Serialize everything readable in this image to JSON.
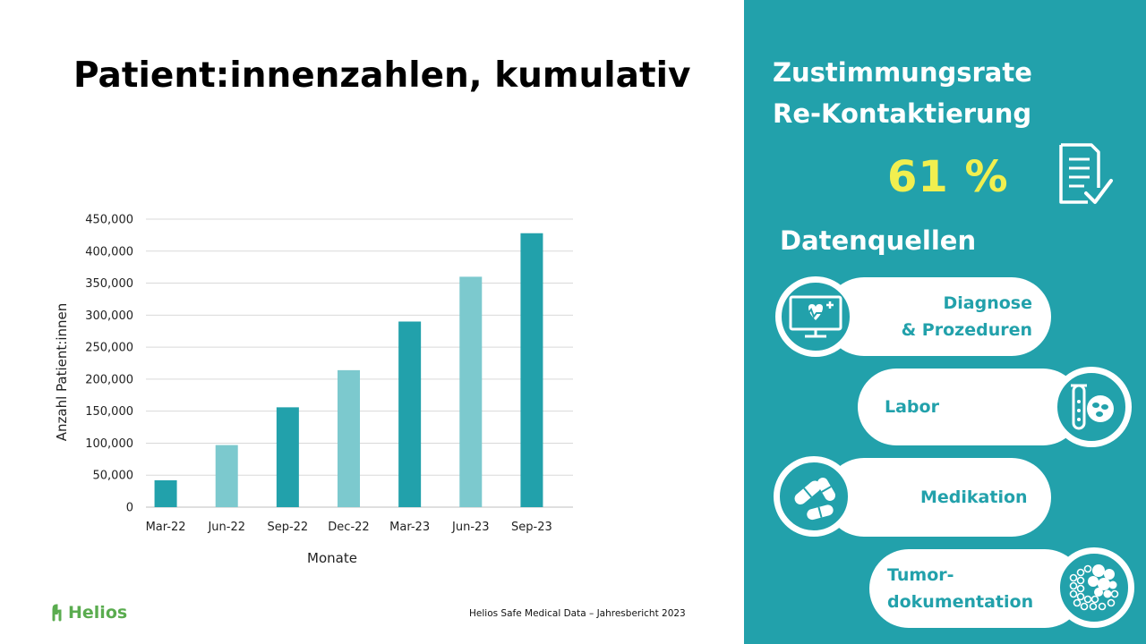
{
  "slide": {
    "title": "Patient:innenzahlen, kumulativ",
    "footer": "Helios Safe Medical Data – Jahresbericht 2023",
    "logo_text": "Helios"
  },
  "panel": {
    "title_line1": "Zustimmungsrate",
    "title_line2": "Re-Kontaktierung",
    "rate": "61 %",
    "sources_title": "Datenquellen",
    "sources": [
      {
        "label": "Diagnose\n& Prozeduren",
        "icon": "monitor-heart-icon"
      },
      {
        "label": "Labor",
        "icon": "test-tube-cells-icon"
      },
      {
        "label": "Medikation",
        "icon": "pills-icon"
      },
      {
        "label": "Tumor-\ndokumentation",
        "icon": "tumor-cells-icon"
      }
    ]
  },
  "colors": {
    "panel": "#22a1ab",
    "bar_dark": "#22a1ab",
    "bar_light": "#7cc9ce",
    "rate": "#f1ef4f",
    "logo": "#5aac4f"
  },
  "chart_data": {
    "type": "bar",
    "categories": [
      "Mar-22",
      "Jun-22",
      "Sep-22",
      "Dec-22",
      "Mar-23",
      "Jun-23",
      "Sep-23"
    ],
    "values": [
      42000,
      97000,
      156000,
      214000,
      290000,
      360000,
      428000
    ],
    "xlabel": "Monate",
    "ylabel": "Anzahl Patient:innen",
    "ylim": [
      0,
      450000
    ],
    "yticks": [
      0,
      50000,
      100000,
      150000,
      200000,
      250000,
      300000,
      350000,
      400000,
      450000
    ],
    "ytick_labels": [
      "0",
      "50,000",
      "100,000",
      "150,000",
      "200,000",
      "250,000",
      "300,000",
      "350,000",
      "400,000",
      "450,000"
    ],
    "grid": true,
    "bar_colors": [
      "#22a1ab",
      "#7cc9ce",
      "#22a1ab",
      "#7cc9ce",
      "#22a1ab",
      "#7cc9ce",
      "#22a1ab"
    ]
  }
}
